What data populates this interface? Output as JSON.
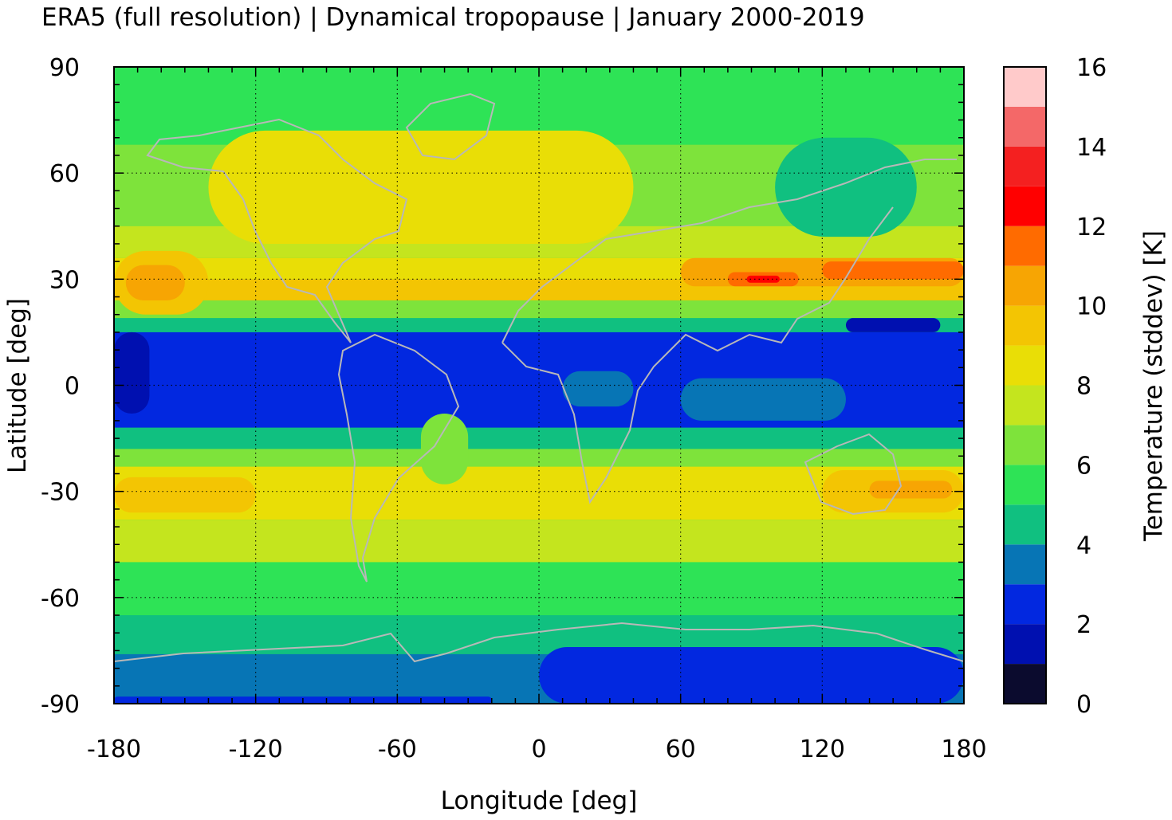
{
  "chart_data": {
    "type": "heatmap",
    "title": "ERA5 (full resolution) | Dynamical tropopause | January 2000-2019",
    "xlabel": "Longitude [deg]",
    "ylabel": "Latitude [deg]",
    "xlim": [
      -180,
      180
    ],
    "ylim": [
      -90,
      90
    ],
    "x_ticks": [
      "-180",
      "-120",
      "-60",
      "0",
      "60",
      "120",
      "180"
    ],
    "y_ticks": [
      "90",
      "60",
      "30",
      "0",
      "-30",
      "-60",
      "-90"
    ],
    "grid": true,
    "colorbar": {
      "label": "Temperature (stddev) [K]",
      "range": [
        0,
        16
      ],
      "tick_labels": [
        "16",
        "14",
        "12",
        "10",
        "8",
        "6",
        "4",
        "2",
        "0"
      ],
      "levels": [
        {
          "from": 0,
          "to": 1,
          "color": "#0b0b2e"
        },
        {
          "from": 1,
          "to": 2,
          "color": "#0010b0"
        },
        {
          "from": 2,
          "to": 3,
          "color": "#0228e0"
        },
        {
          "from": 3,
          "to": 4,
          "color": "#0775b5"
        },
        {
          "from": 4,
          "to": 5,
          "color": "#10c080"
        },
        {
          "from": 5,
          "to": 6,
          "color": "#2ee356"
        },
        {
          "from": 6,
          "to": 7,
          "color": "#7ee33b"
        },
        {
          "from": 7,
          "to": 8,
          "color": "#c4e51e"
        },
        {
          "from": 8,
          "to": 9,
          "color": "#e9de06"
        },
        {
          "from": 9,
          "to": 10,
          "color": "#f3c503"
        },
        {
          "from": 10,
          "to": 11,
          "color": "#f7a503"
        },
        {
          "from": 11,
          "to": 12,
          "color": "#ff6b00"
        },
        {
          "from": 12,
          "to": 13,
          "color": "#ff0000"
        },
        {
          "from": 13,
          "to": 14,
          "color": "#f42020"
        },
        {
          "from": 14,
          "to": 15,
          "color": "#f46868"
        },
        {
          "from": 15,
          "to": 16,
          "color": "#ffcaca"
        }
      ]
    },
    "bands": [
      {
        "lat_top": 90,
        "lat_bottom": 68,
        "value_level": 5
      },
      {
        "lat_top": 68,
        "lat_bottom": 45,
        "value_level": 6
      },
      {
        "lat_top": 45,
        "lat_bottom": 36,
        "value_level": 7
      },
      {
        "lat_top": 36,
        "lat_bottom": 30,
        "value_level": 8
      },
      {
        "lat_top": 30,
        "lat_bottom": 24,
        "value_level": 9
      },
      {
        "lat_top": 24,
        "lat_bottom": 19,
        "value_level": 6
      },
      {
        "lat_top": 19,
        "lat_bottom": 15,
        "value_level": 4
      },
      {
        "lat_top": 15,
        "lat_bottom": -12,
        "value_level": 2
      },
      {
        "lat_top": -12,
        "lat_bottom": -18,
        "value_level": 4
      },
      {
        "lat_top": -18,
        "lat_bottom": -23,
        "value_level": 6
      },
      {
        "lat_top": -23,
        "lat_bottom": -38,
        "value_level": 8
      },
      {
        "lat_top": -38,
        "lat_bottom": -50,
        "value_level": 7
      },
      {
        "lat_top": -50,
        "lat_bottom": -65,
        "value_level": 5
      },
      {
        "lat_top": -65,
        "lat_bottom": -76,
        "value_level": 4
      },
      {
        "lat_top": -76,
        "lat_bottom": -90,
        "value_level": 3
      }
    ],
    "regions": [
      {
        "lon": [
          -140,
          40
        ],
        "lat": [
          40,
          72
        ],
        "value_level": 8
      },
      {
        "lon": [
          -180,
          -140
        ],
        "lat": [
          20,
          38
        ],
        "value_level": 9
      },
      {
        "lon": [
          -175,
          -150
        ],
        "lat": [
          24,
          34
        ],
        "value_level": 10
      },
      {
        "lon": [
          60,
          180
        ],
        "lat": [
          28,
          36
        ],
        "value_level": 10
      },
      {
        "lon": [
          80,
          110
        ],
        "lat": [
          28,
          32
        ],
        "value_level": 11
      },
      {
        "lon": [
          88,
          102
        ],
        "lat": [
          29,
          31
        ],
        "value_level": 12
      },
      {
        "lon": [
          120,
          180
        ],
        "lat": [
          30,
          35
        ],
        "value_level": 11
      },
      {
        "lon": [
          100,
          160
        ],
        "lat": [
          42,
          70
        ],
        "value_level": 4
      },
      {
        "lon": [
          -180,
          -165
        ],
        "lat": [
          -8,
          15
        ],
        "value_level": 1
      },
      {
        "lon": [
          130,
          170
        ],
        "lat": [
          15,
          19
        ],
        "value_level": 1
      },
      {
        "lon": [
          -180,
          -120
        ],
        "lat": [
          -36,
          -26
        ],
        "value_level": 9
      },
      {
        "lon": [
          120,
          180
        ],
        "lat": [
          -36,
          -24
        ],
        "value_level": 9
      },
      {
        "lon": [
          140,
          175
        ],
        "lat": [
          -32,
          -27
        ],
        "value_level": 10
      },
      {
        "lon": [
          -50,
          -30
        ],
        "lat": [
          -28,
          -8
        ],
        "value_level": 6
      },
      {
        "lon": [
          10,
          40
        ],
        "lat": [
          -6,
          4
        ],
        "value_level": 3
      },
      {
        "lon": [
          60,
          130
        ],
        "lat": [
          -10,
          2
        ],
        "value_level": 3
      },
      {
        "lon": [
          0,
          180
        ],
        "lat": [
          -90,
          -74
        ],
        "value_level": 2
      },
      {
        "lon": [
          -180,
          -20
        ],
        "lat": [
          -90,
          -88
        ],
        "value_level": 2
      }
    ]
  }
}
